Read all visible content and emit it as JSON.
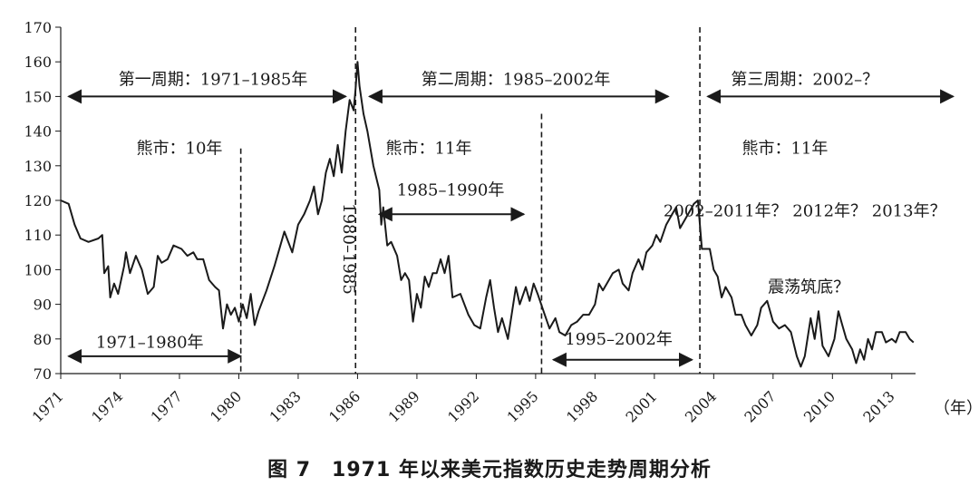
{
  "caption": "图 7　1971 年以来美元指数历史走势周期分析",
  "chart_data": {
    "type": "line",
    "xlim": [
      1971.0,
      2014.2
    ],
    "ylim": [
      70,
      170
    ],
    "y_ticks": [
      70,
      80,
      90,
      100,
      110,
      120,
      130,
      140,
      150,
      160,
      170
    ],
    "x_ticks": [
      1971,
      1974,
      1977,
      1980,
      1983,
      1986,
      1989,
      1992,
      1995,
      1998,
      2001,
      2004,
      2007,
      2010,
      2013
    ],
    "x_unit": "（年）",
    "line_color": "#1a1a1a",
    "series": [
      {
        "points": [
          [
            1971.0,
            120
          ],
          [
            1971.4,
            119
          ],
          [
            1971.7,
            113
          ],
          [
            1972.0,
            109
          ],
          [
            1972.4,
            108
          ],
          [
            1972.9,
            109
          ],
          [
            1973.1,
            110
          ],
          [
            1973.2,
            99
          ],
          [
            1973.4,
            101
          ],
          [
            1973.5,
            92
          ],
          [
            1973.7,
            96
          ],
          [
            1973.9,
            93
          ],
          [
            1974.2,
            101
          ],
          [
            1974.3,
            105
          ],
          [
            1974.5,
            99
          ],
          [
            1974.8,
            104
          ],
          [
            1975.1,
            100
          ],
          [
            1975.4,
            93
          ],
          [
            1975.7,
            95
          ],
          [
            1975.9,
            104
          ],
          [
            1976.1,
            102
          ],
          [
            1976.4,
            103
          ],
          [
            1976.7,
            107
          ],
          [
            1977.1,
            106
          ],
          [
            1977.4,
            104
          ],
          [
            1977.7,
            105
          ],
          [
            1977.9,
            103
          ],
          [
            1978.2,
            103
          ],
          [
            1978.5,
            97
          ],
          [
            1978.8,
            95
          ],
          [
            1979.0,
            94
          ],
          [
            1979.2,
            83
          ],
          [
            1979.4,
            90
          ],
          [
            1979.6,
            87
          ],
          [
            1979.8,
            89
          ],
          [
            1980.0,
            85
          ],
          [
            1980.2,
            90
          ],
          [
            1980.4,
            86
          ],
          [
            1980.6,
            93
          ],
          [
            1980.8,
            84
          ],
          [
            1981.0,
            88
          ],
          [
            1981.4,
            94
          ],
          [
            1981.8,
            101
          ],
          [
            1982.1,
            107
          ],
          [
            1982.3,
            111
          ],
          [
            1982.7,
            105
          ],
          [
            1983.0,
            113
          ],
          [
            1983.3,
            116
          ],
          [
            1983.6,
            120
          ],
          [
            1983.8,
            124
          ],
          [
            1984.0,
            116
          ],
          [
            1984.2,
            120
          ],
          [
            1984.4,
            128
          ],
          [
            1984.6,
            132
          ],
          [
            1984.8,
            127
          ],
          [
            1985.0,
            136
          ],
          [
            1985.2,
            128
          ],
          [
            1985.4,
            140
          ],
          [
            1985.6,
            149
          ],
          [
            1985.8,
            146
          ],
          [
            1985.9,
            152
          ],
          [
            1986.0,
            160
          ],
          [
            1986.1,
            153
          ],
          [
            1986.3,
            145
          ],
          [
            1986.5,
            140
          ],
          [
            1986.8,
            130
          ],
          [
            1987.1,
            123
          ],
          [
            1987.2,
            113
          ],
          [
            1987.3,
            118
          ],
          [
            1987.5,
            107
          ],
          [
            1987.7,
            108
          ],
          [
            1988.0,
            104
          ],
          [
            1988.2,
            97
          ],
          [
            1988.4,
            99
          ],
          [
            1988.6,
            97
          ],
          [
            1988.8,
            85
          ],
          [
            1989.0,
            93
          ],
          [
            1989.2,
            89
          ],
          [
            1989.4,
            98
          ],
          [
            1989.6,
            95
          ],
          [
            1989.8,
            99
          ],
          [
            1990.0,
            99
          ],
          [
            1990.2,
            103
          ],
          [
            1990.4,
            99
          ],
          [
            1990.6,
            104
          ],
          [
            1990.8,
            92
          ],
          [
            1991.2,
            93
          ],
          [
            1991.6,
            87
          ],
          [
            1991.9,
            84
          ],
          [
            1992.2,
            83
          ],
          [
            1992.5,
            92
          ],
          [
            1992.7,
            97
          ],
          [
            1992.9,
            89
          ],
          [
            1993.1,
            82
          ],
          [
            1993.3,
            86
          ],
          [
            1993.6,
            80
          ],
          [
            1994.0,
            95
          ],
          [
            1994.2,
            90
          ],
          [
            1994.5,
            95
          ],
          [
            1994.7,
            91
          ],
          [
            1994.9,
            96
          ],
          [
            1995.1,
            93
          ],
          [
            1995.4,
            88
          ],
          [
            1995.7,
            83
          ],
          [
            1996.0,
            86
          ],
          [
            1996.2,
            82
          ],
          [
            1996.5,
            81
          ],
          [
            1996.8,
            84
          ],
          [
            1997.1,
            85
          ],
          [
            1997.4,
            87
          ],
          [
            1997.7,
            87
          ],
          [
            1998.0,
            90
          ],
          [
            1998.2,
            96
          ],
          [
            1998.4,
            94
          ],
          [
            1998.7,
            97
          ],
          [
            1998.9,
            99
          ],
          [
            1999.2,
            100
          ],
          [
            1999.4,
            96
          ],
          [
            1999.7,
            94
          ],
          [
            1999.9,
            99
          ],
          [
            2000.2,
            103
          ],
          [
            2000.4,
            100
          ],
          [
            2000.6,
            105
          ],
          [
            2000.9,
            107
          ],
          [
            2001.1,
            110
          ],
          [
            2001.3,
            108
          ],
          [
            2001.6,
            113
          ],
          [
            2001.9,
            116
          ],
          [
            2002.1,
            118
          ],
          [
            2002.3,
            112
          ],
          [
            2002.6,
            115
          ],
          [
            2002.8,
            117
          ],
          [
            2003.0,
            119
          ],
          [
            2003.2,
            120
          ],
          [
            2003.4,
            106
          ],
          [
            2003.8,
            106
          ],
          [
            2004.0,
            100
          ],
          [
            2004.2,
            98
          ],
          [
            2004.4,
            92
          ],
          [
            2004.6,
            95
          ],
          [
            2004.9,
            92
          ],
          [
            2005.1,
            87
          ],
          [
            2005.4,
            87
          ],
          [
            2005.6,
            84
          ],
          [
            2005.9,
            81
          ],
          [
            2006.2,
            84
          ],
          [
            2006.4,
            89
          ],
          [
            2006.7,
            91
          ],
          [
            2007.0,
            85
          ],
          [
            2007.3,
            83
          ],
          [
            2007.6,
            84
          ],
          [
            2007.9,
            82
          ],
          [
            2008.2,
            75
          ],
          [
            2008.4,
            72
          ],
          [
            2008.6,
            75
          ],
          [
            2008.9,
            86
          ],
          [
            2009.1,
            80
          ],
          [
            2009.3,
            88
          ],
          [
            2009.5,
            78
          ],
          [
            2009.8,
            75
          ],
          [
            2010.1,
            80
          ],
          [
            2010.3,
            88
          ],
          [
            2010.5,
            84
          ],
          [
            2010.7,
            80
          ],
          [
            2011.0,
            77
          ],
          [
            2011.2,
            73
          ],
          [
            2011.4,
            77
          ],
          [
            2011.6,
            74
          ],
          [
            2011.8,
            80
          ],
          [
            2012.0,
            77
          ],
          [
            2012.2,
            82
          ],
          [
            2012.5,
            82
          ],
          [
            2012.7,
            79
          ],
          [
            2013.0,
            80
          ],
          [
            2013.2,
            79
          ],
          [
            2013.4,
            82
          ],
          [
            2013.7,
            82
          ],
          [
            2013.9,
            80
          ],
          [
            2014.1,
            79
          ]
        ]
      }
    ],
    "vlines": [
      {
        "x": 1980.1,
        "from": 70,
        "to": 135
      },
      {
        "x": 1985.9,
        "from": 70,
        "to": 170
      },
      {
        "x": 1995.3,
        "from": 70,
        "to": 145
      },
      {
        "x": 2003.3,
        "from": 70,
        "to": 170
      }
    ],
    "annotations": [
      {
        "text": "第一周期：1971–1985年",
        "x": 1978.7,
        "y": 155
      },
      {
        "text": "第二周期：1985–2002年",
        "x": 1994.0,
        "y": 155
      },
      {
        "text": "第三周期：2002–？",
        "x": 2008.6,
        "y": 155
      },
      {
        "text": "熊市：10年",
        "x": 1977.0,
        "y": 135
      },
      {
        "text": "熊市：11年",
        "x": 1989.6,
        "y": 135
      },
      {
        "text": "熊市：11年",
        "x": 2007.6,
        "y": 135
      },
      {
        "text": "1985–1990年",
        "x": 1990.7,
        "y": 123
      },
      {
        "text": "2002–2011年？ 2012年？ 2013年？",
        "x": 2008.6,
        "y": 117
      },
      {
        "text": "震荡筑底？",
        "x": 2008.8,
        "y": 95
      },
      {
        "text": "1971–1980年",
        "x": 1975.5,
        "y": 79
      },
      {
        "text": "1995–2002年",
        "x": 1999.2,
        "y": 80
      }
    ],
    "rotated_label": {
      "text": "1980–1985",
      "x": 1985.3,
      "y": 106
    },
    "arrows": [
      {
        "x1": 1971.4,
        "x2": 1985.4,
        "y": 150
      },
      {
        "x1": 1986.6,
        "x2": 2001.7,
        "y": 150
      },
      {
        "x1": 2003.7,
        "x2": 2016.1,
        "y": 150
      },
      {
        "x1": 1987.1,
        "x2": 1994.4,
        "y": 116
      },
      {
        "x1": 1971.4,
        "x2": 1980.1,
        "y": 75
      },
      {
        "x1": 1995.9,
        "x2": 2002.9,
        "y": 74
      }
    ]
  }
}
